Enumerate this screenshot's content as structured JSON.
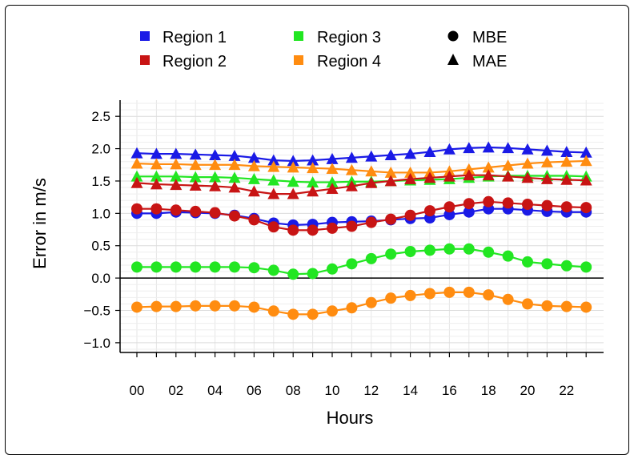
{
  "chart_data": {
    "type": "line",
    "title": "",
    "xlabel": "Hours",
    "ylabel": "Error in m/s",
    "x": [
      0,
      1,
      2,
      3,
      4,
      5,
      6,
      7,
      8,
      9,
      10,
      11,
      12,
      13,
      14,
      15,
      16,
      17,
      18,
      19,
      20,
      21,
      22,
      23
    ],
    "x_tick_labels": [
      "00",
      "02",
      "04",
      "06",
      "08",
      "10",
      "12",
      "14",
      "16",
      "18",
      "20",
      "22"
    ],
    "y_tick_labels": [
      "2.5",
      "2.0",
      "1.5",
      "1.0",
      "0.5",
      "0.0",
      "−0.5",
      "−1.0"
    ],
    "ylim": [
      -1.15,
      2.75
    ],
    "y_ticks": [
      2.5,
      2.0,
      1.5,
      1.0,
      0.5,
      0.0,
      -0.5,
      -1.0
    ],
    "grid": true,
    "legend_position": "top",
    "marker_legend": [
      {
        "label": "MBE",
        "marker": "circle"
      },
      {
        "label": "MAE",
        "marker": "triangle"
      }
    ],
    "series": [
      {
        "name": "Region 1",
        "metric": "MBE",
        "marker": "circle",
        "color": "#1a1ae6",
        "values": [
          1.0,
          1.0,
          1.02,
          1.01,
          1.0,
          0.97,
          0.92,
          0.85,
          0.82,
          0.83,
          0.86,
          0.87,
          0.88,
          0.9,
          0.92,
          0.93,
          0.98,
          1.02,
          1.07,
          1.07,
          1.05,
          1.03,
          1.02,
          1.02
        ]
      },
      {
        "name": "Region 1",
        "metric": "MAE",
        "marker": "triangle",
        "color": "#1a1ae6",
        "values": [
          1.93,
          1.92,
          1.92,
          1.91,
          1.9,
          1.89,
          1.86,
          1.82,
          1.81,
          1.82,
          1.84,
          1.86,
          1.88,
          1.9,
          1.92,
          1.95,
          1.99,
          2.01,
          2.02,
          2.01,
          1.99,
          1.97,
          1.95,
          1.94
        ]
      },
      {
        "name": "Region 2",
        "metric": "MBE",
        "marker": "circle",
        "color": "#c81414",
        "values": [
          1.07,
          1.07,
          1.05,
          1.03,
          1.01,
          0.96,
          0.9,
          0.79,
          0.74,
          0.74,
          0.77,
          0.8,
          0.86,
          0.91,
          0.97,
          1.04,
          1.1,
          1.15,
          1.18,
          1.16,
          1.14,
          1.12,
          1.1,
          1.09
        ]
      },
      {
        "name": "Region 2",
        "metric": "MAE",
        "marker": "triangle",
        "color": "#c81414",
        "values": [
          1.47,
          1.45,
          1.44,
          1.43,
          1.42,
          1.4,
          1.34,
          1.3,
          1.3,
          1.34,
          1.38,
          1.42,
          1.47,
          1.5,
          1.53,
          1.55,
          1.57,
          1.59,
          1.59,
          1.57,
          1.55,
          1.53,
          1.52,
          1.51
        ]
      },
      {
        "name": "Region 3",
        "metric": "MBE",
        "marker": "circle",
        "color": "#22e622",
        "values": [
          0.17,
          0.17,
          0.17,
          0.17,
          0.17,
          0.17,
          0.16,
          0.12,
          0.06,
          0.07,
          0.14,
          0.22,
          0.3,
          0.37,
          0.41,
          0.43,
          0.45,
          0.45,
          0.4,
          0.34,
          0.25,
          0.22,
          0.19,
          0.17
        ]
      },
      {
        "name": "Region 3",
        "metric": "MAE",
        "marker": "triangle",
        "color": "#22e622",
        "values": [
          1.57,
          1.57,
          1.57,
          1.56,
          1.56,
          1.55,
          1.53,
          1.51,
          1.49,
          1.48,
          1.48,
          1.49,
          1.49,
          1.5,
          1.51,
          1.52,
          1.53,
          1.55,
          1.57,
          1.58,
          1.58,
          1.58,
          1.58,
          1.57
        ]
      },
      {
        "name": "Region 4",
        "metric": "MBE",
        "marker": "circle",
        "color": "#ff8c10",
        "values": [
          -0.45,
          -0.44,
          -0.44,
          -0.43,
          -0.43,
          -0.43,
          -0.45,
          -0.51,
          -0.56,
          -0.56,
          -0.51,
          -0.46,
          -0.38,
          -0.31,
          -0.27,
          -0.24,
          -0.22,
          -0.22,
          -0.26,
          -0.33,
          -0.4,
          -0.43,
          -0.44,
          -0.45
        ]
      },
      {
        "name": "Region 4",
        "metric": "MAE",
        "marker": "triangle",
        "color": "#ff8c10",
        "values": [
          1.77,
          1.76,
          1.76,
          1.75,
          1.75,
          1.75,
          1.73,
          1.72,
          1.71,
          1.7,
          1.69,
          1.67,
          1.65,
          1.63,
          1.63,
          1.63,
          1.65,
          1.68,
          1.71,
          1.74,
          1.77,
          1.79,
          1.8,
          1.81
        ]
      }
    ]
  },
  "legend": {
    "regions": [
      {
        "label": "Region 1",
        "color": "#1a1ae6"
      },
      {
        "label": "Region 2",
        "color": "#c81414"
      },
      {
        "label": "Region 3",
        "color": "#22e622"
      },
      {
        "label": "Region 4",
        "color": "#ff8c10"
      }
    ]
  }
}
